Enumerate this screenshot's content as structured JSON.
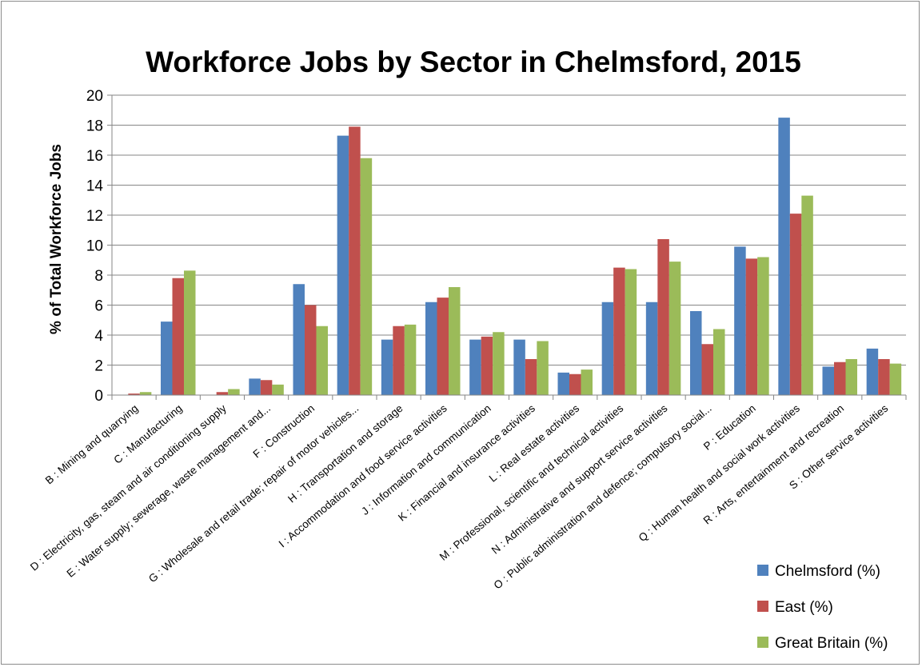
{
  "chart_data": {
    "type": "bar",
    "title": "Workforce Jobs by Sector in Chelmsford, 2015",
    "xlabel": "",
    "ylabel": "% of Total Workforce Jobs",
    "ylim": [
      0,
      20
    ],
    "yticks": [
      0,
      2,
      4,
      6,
      8,
      10,
      12,
      14,
      16,
      18,
      20
    ],
    "grid": true,
    "legend_position": "bottom-right",
    "categories": [
      "B : Mining and quarrying",
      "C : Manufacturing",
      "D : Electricity, gas, steam and air conditioning supply",
      "E : Water supply; sewerage, waste management and...",
      "F : Construction",
      "G : Wholesale and retail trade; repair of motor vehicles...",
      "H : Transportation and storage",
      "I : Accommodation and food service activities",
      "J : Information and communication",
      "K : Financial and insurance activities",
      "L : Real estate activities",
      "M : Professional, scientific and technical activities",
      "N : Administrative and support service activities",
      "O : Public administration and defence; compulsory social...",
      "P : Education",
      "Q : Human health and social work activities",
      "R : Arts, entertainment and recreation",
      "S : Other service activities"
    ],
    "series": [
      {
        "name": "Chelmsford (%)",
        "color": "#4f81bd",
        "values": [
          0,
          4.9,
          0,
          1.1,
          7.4,
          17.3,
          3.7,
          6.2,
          3.7,
          3.7,
          1.5,
          6.2,
          6.2,
          5.6,
          9.9,
          18.5,
          1.9,
          3.1
        ]
      },
      {
        "name": "East (%)",
        "color": "#c0504d",
        "values": [
          0.1,
          7.8,
          0.2,
          1.0,
          6.0,
          17.9,
          4.6,
          6.5,
          3.9,
          2.4,
          1.4,
          8.5,
          10.4,
          3.4,
          9.1,
          12.1,
          2.2,
          2.4
        ]
      },
      {
        "name": "Great Britain (%)",
        "color": "#9bbb59",
        "values": [
          0.2,
          8.3,
          0.4,
          0.7,
          4.6,
          15.8,
          4.7,
          7.2,
          4.2,
          3.6,
          1.7,
          8.4,
          8.9,
          4.4,
          9.2,
          13.3,
          2.4,
          2.1
        ]
      }
    ]
  }
}
